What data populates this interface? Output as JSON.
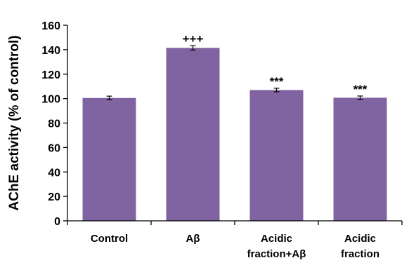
{
  "chart_data": {
    "type": "bar",
    "title": "",
    "xlabel": "",
    "ylabel": "AChE activity (% of control)",
    "ylim": [
      0,
      160
    ],
    "yticks": [
      0,
      20,
      40,
      60,
      80,
      100,
      120,
      140,
      160
    ],
    "grid": false,
    "bar_color": "#8064a2",
    "categories": [
      [
        "Control"
      ],
      [
        "Aβ"
      ],
      [
        "Acidic",
        "fraction+Aβ"
      ],
      [
        "Acidic",
        "fraction"
      ]
    ],
    "values": [
      100.5,
      141.5,
      107,
      100.7
    ],
    "errors": [
      1.5,
      1.8,
      1.5,
      1.4
    ],
    "annotations": [
      "",
      "+++",
      "***",
      "***"
    ]
  }
}
